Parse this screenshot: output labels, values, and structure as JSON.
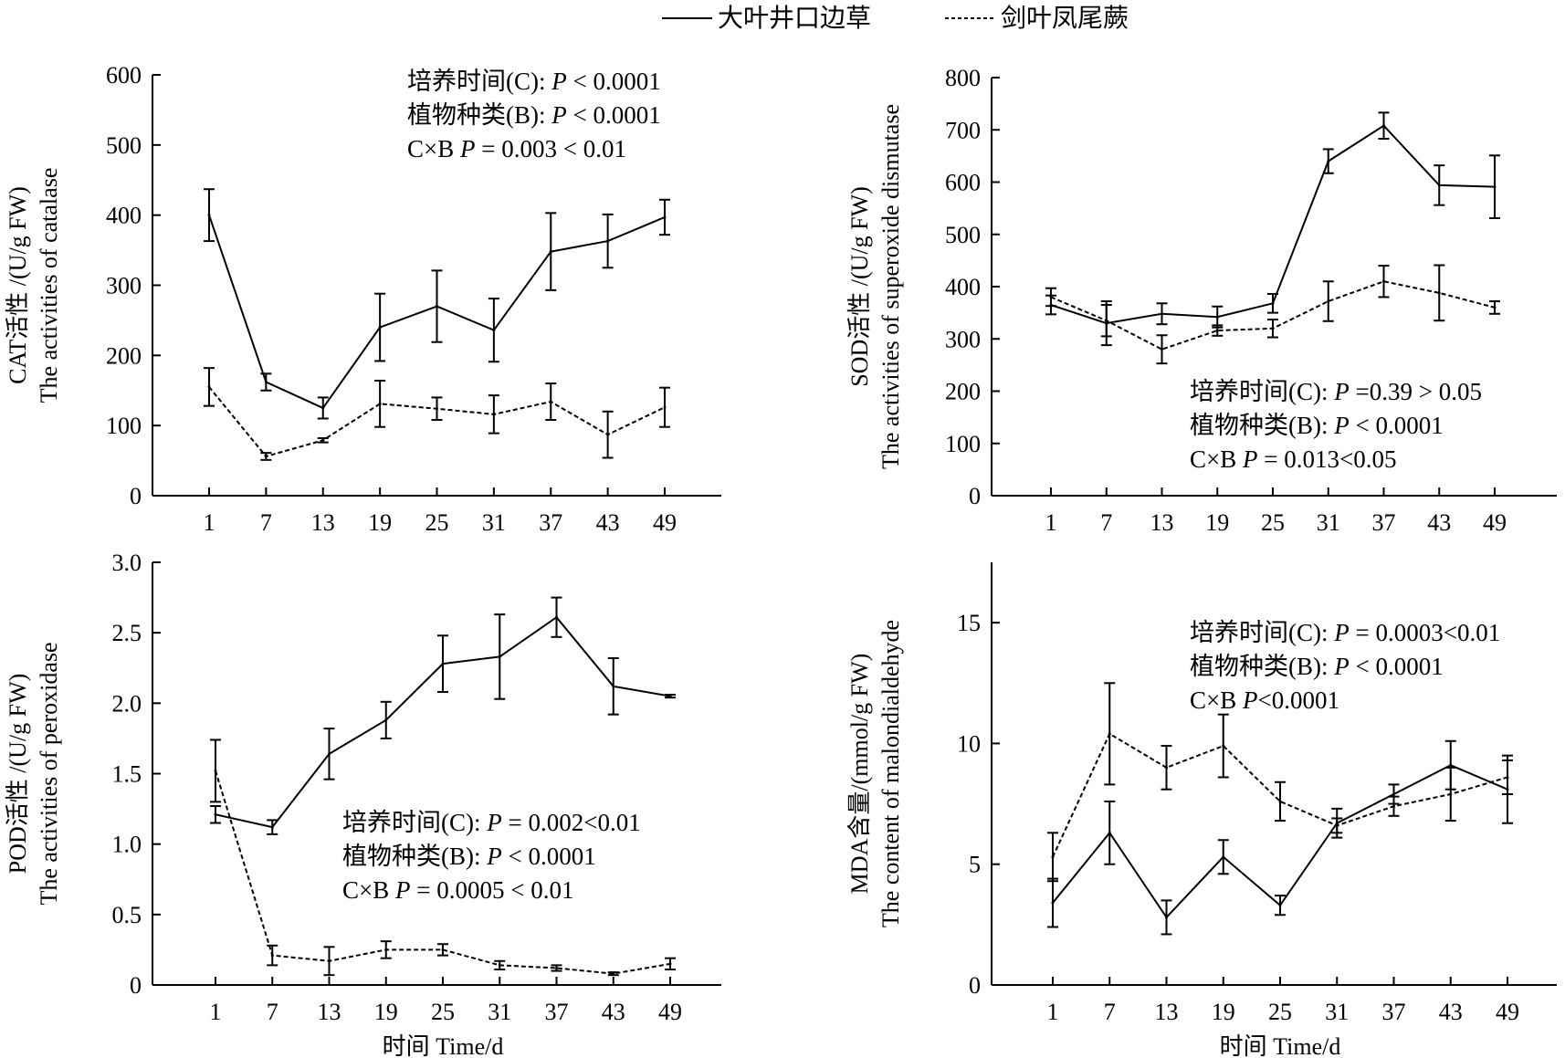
{
  "legend": [
    {
      "label": "大叶井口边草",
      "dash": "solid"
    },
    {
      "label": "剑叶凤尾蕨",
      "dash": "dashed"
    }
  ],
  "chart_data": [
    {
      "id": "cat",
      "type": "line",
      "title": "",
      "ylabel_cn": "CAT活性 /(U/g FW)",
      "ylabel_en": "The activities of catalase",
      "xlabel": "",
      "categories": [
        "1",
        "7",
        "13",
        "19",
        "25",
        "31",
        "37",
        "43",
        "49"
      ],
      "ylim": [
        0,
        600
      ],
      "yticks": [
        "0",
        "100",
        "200",
        "300",
        "400",
        "500",
        "600"
      ],
      "yticks_values": [
        0,
        100,
        200,
        300,
        400,
        500,
        600
      ],
      "series": [
        {
          "name": "大叶井口边草",
          "dash": "solid",
          "values": [
            400,
            162,
            125,
            240,
            270,
            236,
            348,
            363,
            397
          ],
          "errors": [
            37,
            12,
            15,
            48,
            51,
            45,
            55,
            38,
            25
          ]
        },
        {
          "name": "剑叶凤尾蕨",
          "dash": "dashed",
          "values": [
            155,
            56,
            79,
            131,
            124,
            116,
            134,
            87,
            126
          ],
          "errors": [
            27,
            5,
            3,
            33,
            16,
            27,
            26,
            33,
            28
          ]
        }
      ],
      "stats": [
        {
          "label": "培养时间(C): ",
          "p": "P",
          "rest": " < 0.0001"
        },
        {
          "label": "植物种类(B): ",
          "p": "P",
          "rest": " < 0.0001"
        },
        {
          "label": "C×B  ",
          "p": "P",
          "rest": " = 0.003 < 0.01"
        }
      ]
    },
    {
      "id": "sod",
      "type": "line",
      "title": "",
      "ylabel_cn": "SOD活性 /(U/g FW)",
      "ylabel_en": "The activities of superoxide dismutase",
      "xlabel": "",
      "categories": [
        "1",
        "7",
        "13",
        "19",
        "25",
        "31",
        "37",
        "43",
        "49"
      ],
      "ylim": [
        0,
        800
      ],
      "yticks": [
        "0",
        "100",
        "200",
        "300",
        "400",
        "500",
        "600",
        "700",
        "800"
      ],
      "yticks_values": [
        0,
        100,
        200,
        300,
        400,
        500,
        600,
        700,
        800
      ],
      "series": [
        {
          "name": "大叶井口边草",
          "dash": "solid",
          "values": [
            365,
            330,
            348,
            342,
            368,
            640,
            708,
            594,
            591
          ],
          "errors": [
            18,
            42,
            20,
            20,
            18,
            23,
            25,
            38,
            60
          ]
        },
        {
          "name": "剑叶凤尾蕨",
          "dash": "dashed",
          "values": [
            380,
            335,
            280,
            316,
            320,
            372,
            410,
            388,
            360
          ],
          "errors": [
            17,
            30,
            27,
            10,
            17,
            38,
            30,
            53,
            12
          ]
        }
      ],
      "stats": [
        {
          "label": "培养时间(C): ",
          "p": "P",
          "rest": "  =0.39 > 0.05"
        },
        {
          "label": "植物种类(B): ",
          "p": "P",
          "rest": " < 0.0001"
        },
        {
          "label": "C×B  ",
          "p": "P",
          "rest": " = 0.013<0.05"
        }
      ]
    },
    {
      "id": "pod",
      "type": "line",
      "title": "",
      "ylabel_cn": "POD活性 /(U/g FW)",
      "ylabel_en": "The activities of peroxidase",
      "xlabel": "时间 Time/d",
      "categories": [
        "1",
        "7",
        "13",
        "19",
        "25",
        "31",
        "37",
        "43",
        "49"
      ],
      "ylim": [
        0,
        3.0
      ],
      "yticks": [
        "0",
        "0.5",
        "1.0",
        "1.5",
        "2.0",
        "2.5",
        "3.0"
      ],
      "yticks_values": [
        0,
        0.5,
        1.0,
        1.5,
        2.0,
        2.5,
        3.0
      ],
      "series": [
        {
          "name": "大叶井口边草",
          "dash": "solid",
          "values": [
            1.21,
            1.12,
            1.64,
            1.88,
            2.28,
            2.33,
            2.61,
            2.12,
            2.05
          ],
          "errors": [
            0.06,
            0.05,
            0.18,
            0.13,
            0.2,
            0.3,
            0.14,
            0.2,
            0.01
          ]
        },
        {
          "name": "剑叶凤尾蕨",
          "dash": "dashed",
          "values": [
            1.52,
            0.21,
            0.17,
            0.25,
            0.25,
            0.14,
            0.12,
            0.08,
            0.15
          ],
          "errors": [
            0.22,
            0.07,
            0.1,
            0.06,
            0.04,
            0.03,
            0.02,
            0.01,
            0.04
          ]
        }
      ],
      "stats": [
        {
          "label": "培养时间(C): ",
          "p": "P",
          "rest": " = 0.002<0.01"
        },
        {
          "label": "植物种类(B): ",
          "p": "P",
          "rest": " < 0.0001"
        },
        {
          "label": "C×B  ",
          "p": "P",
          "rest": " = 0.0005 < 0.01"
        }
      ]
    },
    {
      "id": "mda",
      "type": "line",
      "title": "",
      "ylabel_cn": "MDA含量/(mmol/g FW)",
      "ylabel_en": "The content of malondialdehyde",
      "xlabel": "时间 Time/d",
      "categories": [
        "1",
        "7",
        "13",
        "19",
        "25",
        "31",
        "37",
        "43",
        "49"
      ],
      "ylim": [
        0,
        17.5
      ],
      "yticks": [
        "0",
        "5",
        "10",
        "15"
      ],
      "yticks_values": [
        0,
        5,
        10,
        15
      ],
      "series": [
        {
          "name": "大叶井口边草",
          "dash": "solid",
          "values": [
            3.4,
            6.3,
            2.8,
            5.3,
            3.3,
            6.7,
            7.9,
            9.1,
            8.1
          ],
          "errors": [
            1.0,
            1.3,
            0.7,
            0.7,
            0.4,
            0.6,
            0.4,
            1.0,
            1.4
          ]
        },
        {
          "name": "剑叶凤尾蕨",
          "dash": "dashed",
          "values": [
            5.3,
            10.4,
            9.0,
            9.9,
            7.6,
            6.6,
            7.4,
            7.9,
            8.6
          ],
          "errors": [
            1.0,
            2.1,
            0.9,
            1.3,
            0.8,
            0.3,
            0.4,
            1.1,
            0.7
          ]
        }
      ],
      "stats": [
        {
          "label": "培养时间(C): ",
          "p": "P",
          "rest": " = 0.0003<0.01"
        },
        {
          "label": "植物种类(B): ",
          "p": "P",
          "rest": " < 0.0001"
        },
        {
          "label": "C×B  ",
          "p": "P",
          "rest": "<0.0001"
        }
      ]
    }
  ]
}
